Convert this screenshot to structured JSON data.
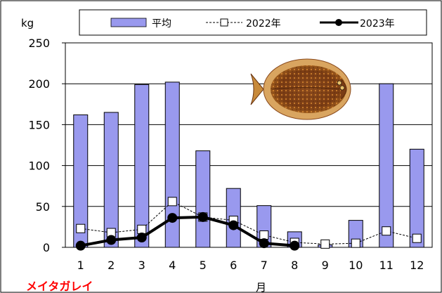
{
  "chart_data": {
    "type": "bar",
    "ylabel": "kg",
    "xlabel": "月",
    "species_label": "メイタガレイ",
    "categories": [
      "1",
      "2",
      "3",
      "4",
      "5",
      "6",
      "7",
      "8",
      "9",
      "10",
      "11",
      "12"
    ],
    "ylim": [
      0,
      250
    ],
    "yticks": [
      0,
      50,
      100,
      150,
      200,
      250
    ],
    "grid": true,
    "legend_position": "top",
    "series": [
      {
        "name": "平均",
        "kind": "bar",
        "color": "#9999ee",
        "values": [
          162,
          165,
          199,
          202,
          118,
          72,
          51,
          19,
          3,
          33,
          200,
          120
        ]
      },
      {
        "name": "2022年",
        "kind": "line-dashed",
        "marker": "open-square",
        "color": "#000000",
        "values": [
          23,
          18,
          22,
          56,
          37,
          33,
          15,
          6,
          4,
          5,
          20,
          11
        ]
      },
      {
        "name": "2023年",
        "kind": "line-bold",
        "marker": "filled-circle",
        "color": "#000000",
        "values": [
          2,
          9,
          12,
          36,
          37,
          27,
          5,
          2,
          null,
          null,
          null,
          null
        ]
      }
    ],
    "image_icon": "flatfish-icon"
  }
}
